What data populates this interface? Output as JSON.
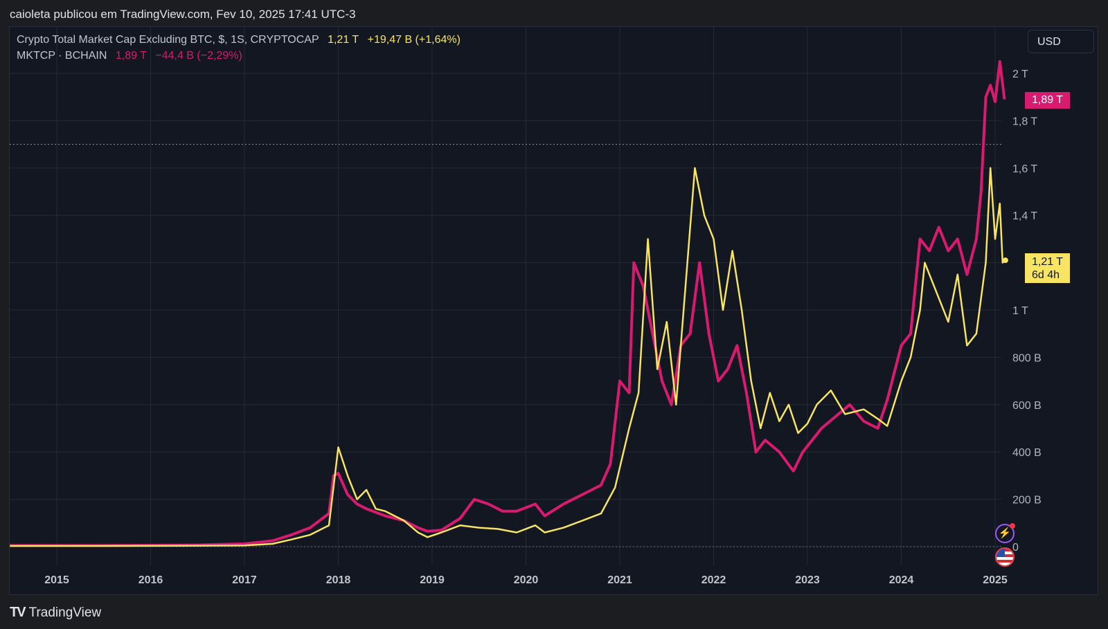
{
  "header": {
    "publisher_line": "caioleta publicou em TradingView.com, Fev 10, 2025 17:41 UTC-3"
  },
  "legend": {
    "series1_name": "Crypto Total Market Cap Excluding BTC, $, 1S, CRYPTOCAP",
    "series1_value": "1,21 T",
    "series1_change": "+19,47 B (+1,64%)",
    "series2_name": "MKTCP · BCHAIN",
    "series2_value": "1,89 T",
    "series2_change": "−44,4 B (−2,29%)"
  },
  "currency_button": "USD",
  "price_tags": {
    "magenta": "1,89 T",
    "yellow_value": "1,21 T",
    "yellow_countdown": "6d 4h"
  },
  "footer": {
    "brand": "TradingView",
    "brand_logo": "TV"
  },
  "icons": {
    "alert": "lightning-icon",
    "flag": "us-flag-icon"
  },
  "colors": {
    "series_yellow": "#f7e463",
    "series_magenta": "#d81b70",
    "background": "#131722"
  },
  "chart_data": {
    "type": "line",
    "title": "",
    "ylim": [
      0,
      2000
    ],
    "y_unit": "B",
    "y_ticks": [
      {
        "v": 0,
        "label": "0"
      },
      {
        "v": 200,
        "label": "200 B"
      },
      {
        "v": 400,
        "label": "400 B"
      },
      {
        "v": 600,
        "label": "600 B"
      },
      {
        "v": 800,
        "label": "800 B"
      },
      {
        "v": 1000,
        "label": "1 T"
      },
      {
        "v": 1200,
        "label": "1,2 T"
      },
      {
        "v": 1400,
        "label": "1,4 T"
      },
      {
        "v": 1600,
        "label": "1,6 T"
      },
      {
        "v": 1800,
        "label": "1,8 T"
      },
      {
        "v": 2000,
        "label": "2 T"
      }
    ],
    "x_ticks": [
      {
        "year": 2015,
        "label": "2015"
      },
      {
        "year": 2016,
        "label": "2016"
      },
      {
        "year": 2017,
        "label": "2017"
      },
      {
        "year": 2018,
        "label": "2018"
      },
      {
        "year": 2019,
        "label": "2019"
      },
      {
        "year": 2020,
        "label": "2020"
      },
      {
        "year": 2021,
        "label": "2021"
      },
      {
        "year": 2022,
        "label": "2022"
      },
      {
        "year": 2023,
        "label": "2023"
      },
      {
        "year": 2024,
        "label": "2024"
      },
      {
        "year": 2025,
        "label": "2025"
      }
    ],
    "xlim": [
      2014.5,
      2025.15
    ],
    "reference_line": 1700,
    "series": [
      {
        "name": "Crypto Total Market Cap Excluding BTC",
        "color": "#f7e463",
        "points": [
          [
            2014.5,
            3
          ],
          [
            2015.5,
            3
          ],
          [
            2016.5,
            4
          ],
          [
            2017.0,
            5
          ],
          [
            2017.3,
            12
          ],
          [
            2017.5,
            30
          ],
          [
            2017.7,
            50
          ],
          [
            2017.9,
            90
          ],
          [
            2018.0,
            420
          ],
          [
            2018.1,
            300
          ],
          [
            2018.2,
            200
          ],
          [
            2018.3,
            240
          ],
          [
            2018.4,
            160
          ],
          [
            2018.5,
            150
          ],
          [
            2018.7,
            110
          ],
          [
            2018.85,
            60
          ],
          [
            2018.95,
            40
          ],
          [
            2019.1,
            60
          ],
          [
            2019.3,
            90
          ],
          [
            2019.5,
            80
          ],
          [
            2019.7,
            75
          ],
          [
            2019.9,
            60
          ],
          [
            2020.1,
            90
          ],
          [
            2020.2,
            60
          ],
          [
            2020.4,
            80
          ],
          [
            2020.6,
            110
          ],
          [
            2020.8,
            140
          ],
          [
            2020.95,
            250
          ],
          [
            2021.1,
            500
          ],
          [
            2021.2,
            650
          ],
          [
            2021.3,
            1300
          ],
          [
            2021.4,
            750
          ],
          [
            2021.5,
            950
          ],
          [
            2021.6,
            600
          ],
          [
            2021.7,
            1100
          ],
          [
            2021.8,
            1600
          ],
          [
            2021.9,
            1400
          ],
          [
            2022.0,
            1300
          ],
          [
            2022.1,
            1000
          ],
          [
            2022.2,
            1250
          ],
          [
            2022.3,
            1000
          ],
          [
            2022.4,
            700
          ],
          [
            2022.5,
            500
          ],
          [
            2022.6,
            650
          ],
          [
            2022.7,
            530
          ],
          [
            2022.8,
            600
          ],
          [
            2022.9,
            480
          ],
          [
            2023.0,
            520
          ],
          [
            2023.1,
            600
          ],
          [
            2023.25,
            660
          ],
          [
            2023.4,
            560
          ],
          [
            2023.6,
            580
          ],
          [
            2023.75,
            540
          ],
          [
            2023.85,
            510
          ],
          [
            2024.0,
            700
          ],
          [
            2024.1,
            800
          ],
          [
            2024.2,
            1000
          ],
          [
            2024.25,
            1200
          ],
          [
            2024.35,
            1100
          ],
          [
            2024.5,
            950
          ],
          [
            2024.6,
            1150
          ],
          [
            2024.7,
            850
          ],
          [
            2024.8,
            900
          ],
          [
            2024.9,
            1200
          ],
          [
            2024.95,
            1600
          ],
          [
            2025.0,
            1300
          ],
          [
            2025.05,
            1450
          ],
          [
            2025.08,
            1200
          ],
          [
            2025.11,
            1210
          ]
        ]
      },
      {
        "name": "MKTCP · BCHAIN",
        "color": "#d81b70",
        "points": [
          [
            2014.5,
            5
          ],
          [
            2015.5,
            5
          ],
          [
            2016.5,
            7
          ],
          [
            2017.0,
            12
          ],
          [
            2017.3,
            25
          ],
          [
            2017.5,
            50
          ],
          [
            2017.7,
            80
          ],
          [
            2017.9,
            140
          ],
          [
            2017.95,
            300
          ],
          [
            2018.0,
            310
          ],
          [
            2018.1,
            220
          ],
          [
            2018.2,
            180
          ],
          [
            2018.3,
            160
          ],
          [
            2018.5,
            130
          ],
          [
            2018.7,
            110
          ],
          [
            2018.85,
            80
          ],
          [
            2018.95,
            65
          ],
          [
            2019.1,
            70
          ],
          [
            2019.3,
            120
          ],
          [
            2019.45,
            200
          ],
          [
            2019.6,
            180
          ],
          [
            2019.75,
            150
          ],
          [
            2019.9,
            150
          ],
          [
            2020.1,
            180
          ],
          [
            2020.2,
            130
          ],
          [
            2020.4,
            180
          ],
          [
            2020.6,
            220
          ],
          [
            2020.8,
            260
          ],
          [
            2020.9,
            350
          ],
          [
            2021.0,
            700
          ],
          [
            2021.1,
            650
          ],
          [
            2021.15,
            1200
          ],
          [
            2021.25,
            1100
          ],
          [
            2021.35,
            900
          ],
          [
            2021.45,
            700
          ],
          [
            2021.55,
            600
          ],
          [
            2021.65,
            850
          ],
          [
            2021.75,
            900
          ],
          [
            2021.85,
            1200
          ],
          [
            2021.95,
            900
          ],
          [
            2022.05,
            700
          ],
          [
            2022.15,
            750
          ],
          [
            2022.25,
            850
          ],
          [
            2022.35,
            650
          ],
          [
            2022.45,
            400
          ],
          [
            2022.55,
            450
          ],
          [
            2022.7,
            400
          ],
          [
            2022.85,
            320
          ],
          [
            2022.95,
            400
          ],
          [
            2023.05,
            450
          ],
          [
            2023.15,
            500
          ],
          [
            2023.3,
            550
          ],
          [
            2023.45,
            600
          ],
          [
            2023.6,
            530
          ],
          [
            2023.75,
            500
          ],
          [
            2023.85,
            620
          ],
          [
            2024.0,
            850
          ],
          [
            2024.1,
            900
          ],
          [
            2024.2,
            1300
          ],
          [
            2024.3,
            1250
          ],
          [
            2024.4,
            1350
          ],
          [
            2024.5,
            1250
          ],
          [
            2024.6,
            1300
          ],
          [
            2024.7,
            1150
          ],
          [
            2024.8,
            1300
          ],
          [
            2024.85,
            1500
          ],
          [
            2024.9,
            1900
          ],
          [
            2024.95,
            1950
          ],
          [
            2025.0,
            1880
          ],
          [
            2025.05,
            2050
          ],
          [
            2025.1,
            1890
          ]
        ]
      }
    ]
  }
}
